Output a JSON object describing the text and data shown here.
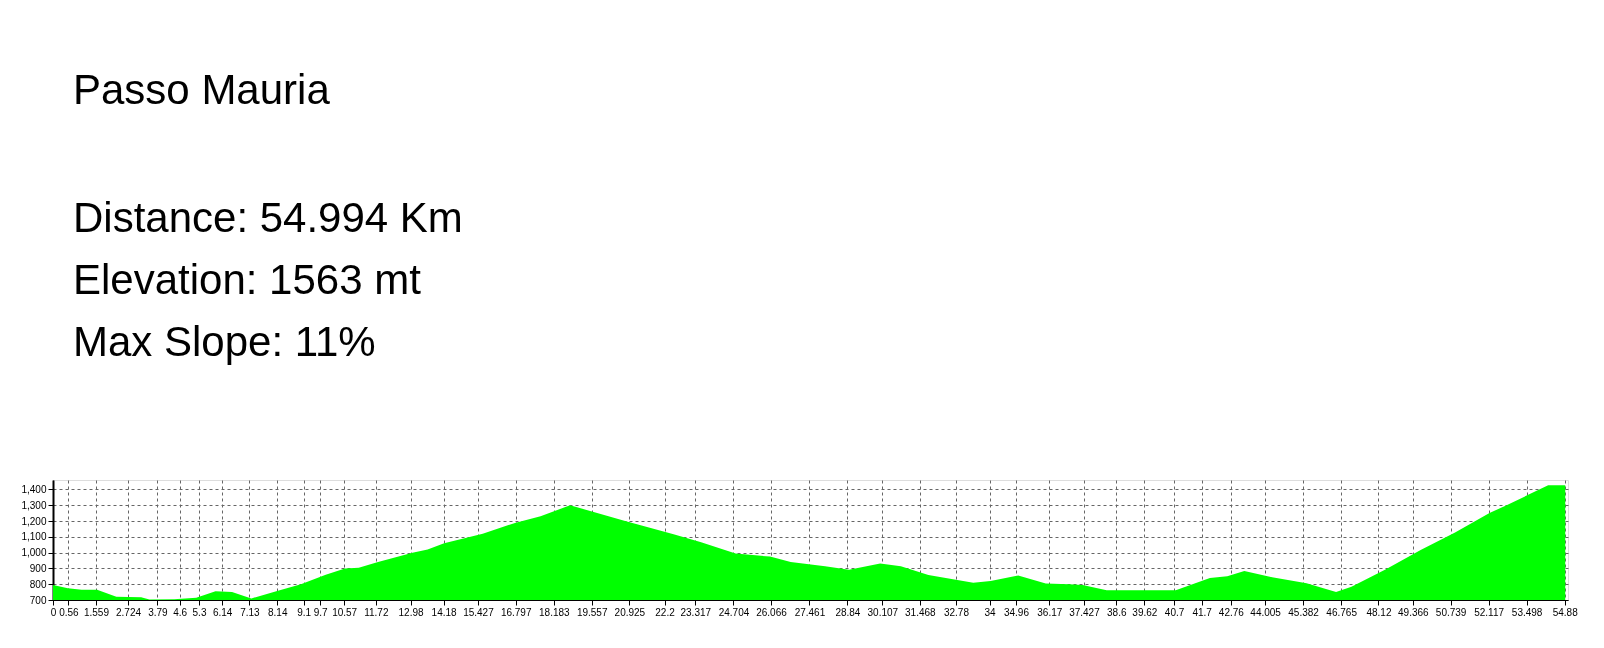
{
  "chart_data": {
    "type": "area",
    "title": "Passo Mauria",
    "annotations": [
      "Distance: 54.994 Km",
      "Elevation: 1563 mt",
      "Max Slope: 11%"
    ],
    "x": [
      0,
      0.54,
      1.04,
      1.6,
      2.3,
      3.2,
      3.5,
      4.4,
      5.2,
      5.9,
      6.5,
      7.2,
      8.2,
      9.0,
      9.9,
      10.6,
      11.1,
      11.8,
      13.05,
      13.6,
      14.2,
      15.6,
      16.8,
      17.7,
      18.77,
      20.77,
      22.53,
      23.53,
      24.78,
      26.03,
      26.78,
      28.03,
      28.9,
      30.03,
      30.78,
      31.78,
      33.41,
      34.04,
      35.04,
      36.04,
      36.89,
      37.38,
      38.25,
      40.76,
      42.0,
      42.63,
      43.25,
      44.26,
      45.51,
      46.58,
      47.14,
      48.39,
      49.65,
      50.9,
      52.15,
      52.77,
      54.28,
      54.9
    ],
    "series": [
      {
        "color": "#00ff00",
        "values": [
          795,
          775,
          765,
          765,
          720,
          718,
          703,
          705,
          715,
          755,
          750,
          710,
          760,
          800,
          860,
          900,
          905,
          940,
          1000,
          1020,
          1060,
          1120,
          1190,
          1230,
          1300,
          1201,
          1116,
          1066,
          994,
          975,
          940,
          913,
          892,
          931,
          913,
          859,
          809,
          820,
          855,
          805,
          800,
          795,
          762,
          762,
          840,
          850,
          884,
          844,
          806,
          751,
          784,
          895,
          1017,
          1128,
          1251,
          1300,
          1427,
          1427
        ]
      }
    ],
    "xlim": [
      0,
      55
    ],
    "xticks": [
      0,
      0.56,
      1.559,
      2.724,
      3.79,
      4.6,
      5.3,
      6.14,
      7.13,
      8.14,
      9.1,
      9.7,
      10.57,
      11.72,
      12.98,
      14.18,
      15.427,
      16.797,
      18.183,
      19.557,
      20.925,
      22.2,
      23.317,
      24.704,
      26.066,
      27.461,
      28.84,
      30.107,
      31.468,
      32.78,
      34,
      34.96,
      36.17,
      37.427,
      38.6,
      39.62,
      40.7,
      41.7,
      42.76,
      44.005,
      45.382,
      46.765,
      48.12,
      49.366,
      50.739,
      52.117,
      53.498,
      54.88
    ],
    "ylim": [
      700,
      1460
    ],
    "yticks": [
      {
        "value": 700,
        "label": "700"
      },
      {
        "value": 800,
        "label": "800"
      },
      {
        "value": 900,
        "label": "900"
      },
      {
        "value": 1000,
        "label": "1,000"
      },
      {
        "value": 1100,
        "label": "1,100"
      },
      {
        "value": 1200,
        "label": "1,200"
      },
      {
        "value": 1300,
        "label": "1,300"
      },
      {
        "value": 1400,
        "label": "1,400"
      }
    ],
    "grid": true
  }
}
